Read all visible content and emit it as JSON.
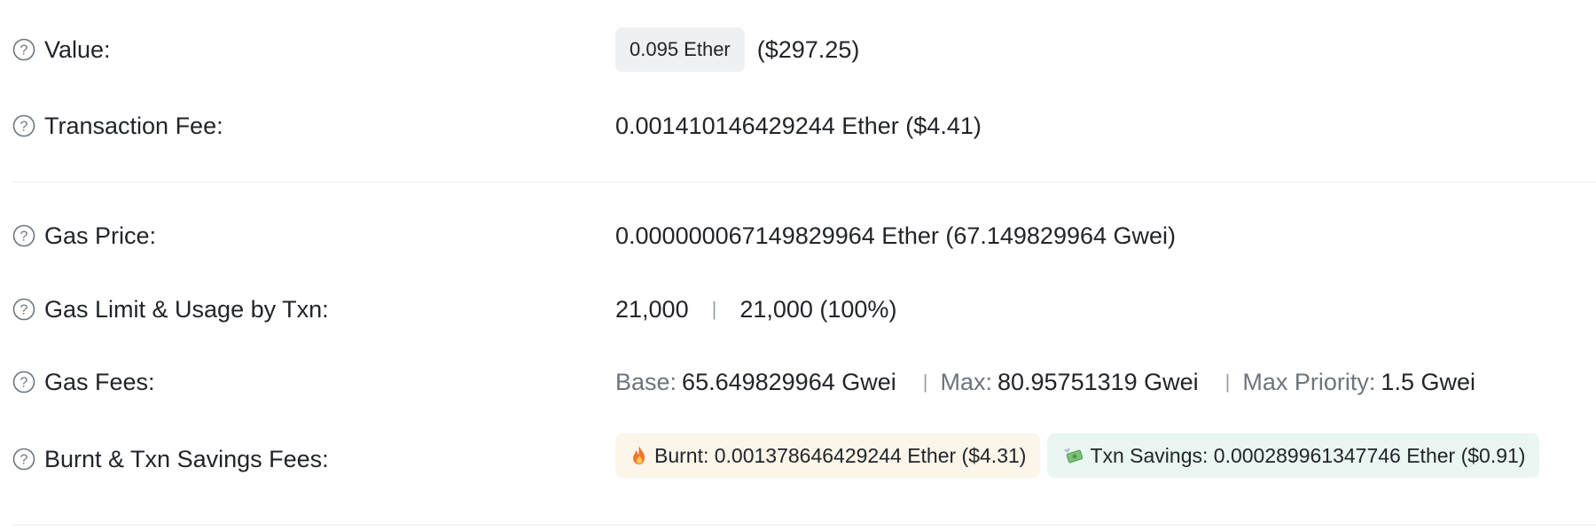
{
  "rows": {
    "value": {
      "label": "Value:",
      "amount_pill": "0.095 Ether",
      "usd": "($297.25)"
    },
    "transaction_fee": {
      "label": "Transaction Fee:",
      "value": "0.001410146429244 Ether ($4.41)"
    },
    "gas_price": {
      "label": "Gas Price:",
      "value": "0.000000067149829964 Ether (67.149829964 Gwei)"
    },
    "gas_limit": {
      "label": "Gas Limit & Usage by Txn:",
      "limit": "21,000",
      "separator": "|",
      "usage": "21,000 (100%)"
    },
    "gas_fees": {
      "label": "Gas Fees:",
      "base_label": "Base:",
      "base_value": "65.649829964 Gwei",
      "max_label": "Max:",
      "max_value": "80.95751319 Gwei",
      "priority_label": "Max Priority:",
      "priority_value": "1.5 Gwei",
      "separator": "|"
    },
    "burnt_savings": {
      "label": "Burnt & Txn Savings Fees:",
      "burnt_text": "Burnt: 0.001378646429244 Ether ($4.31)",
      "savings_text": "Txn Savings: 0.000289961347746 Ether ($0.91)"
    }
  },
  "icons": {
    "help": "question-circle-icon",
    "burnt": "fire-icon",
    "savings": "money-wings-icon"
  },
  "colors": {
    "text": "#212529",
    "muted": "#6c757d",
    "ether_pill_bg": "#eef0f2",
    "burnt_bg": "#fbf5ea",
    "savings_bg": "#eaf6f1",
    "divider": "#e9ecef"
  }
}
